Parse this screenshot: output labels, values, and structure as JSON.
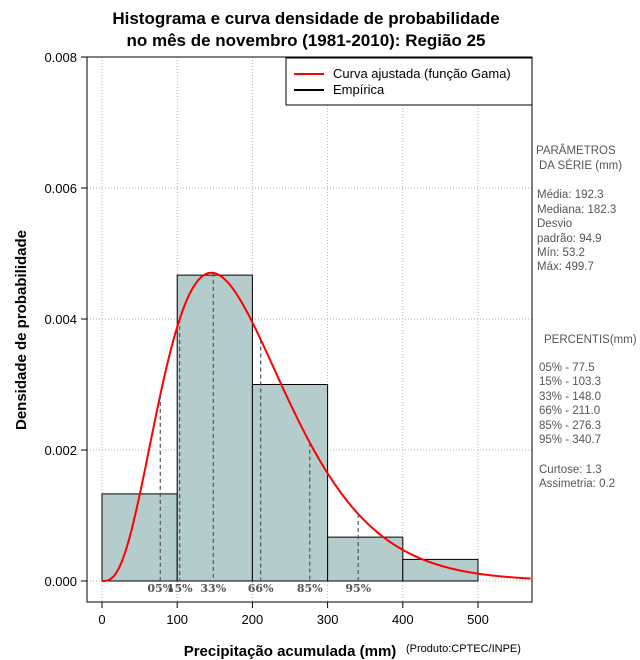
{
  "chart_data": {
    "type": "histogram",
    "title_line1": "Histograma e curva densidade de probabilidade",
    "title_line2": "no mês de novembro (1981-2010): Região 25",
    "xlabel": "Precipitação acumulada (mm)",
    "ylabel": "Densidade de probabilidade",
    "credit": "(Produto:CPTEC/INPE)",
    "xlim": [
      -20,
      570
    ],
    "ylim": [
      -0.0003,
      0.008
    ],
    "x_ticks": [
      "0",
      "100",
      "200",
      "300",
      "400",
      "500"
    ],
    "x_tick_values": [
      0,
      100,
      200,
      300,
      400,
      500
    ],
    "y_ticks": [
      "0.000",
      "0.002",
      "0.004",
      "0.006",
      "0.008"
    ],
    "y_tick_values": [
      0,
      0.002,
      0.004,
      0.006,
      0.008
    ],
    "bins": [
      {
        "start": 0,
        "end": 100,
        "density": 0.00133
      },
      {
        "start": 100,
        "end": 200,
        "density": 0.00467
      },
      {
        "start": 200,
        "end": 300,
        "density": 0.003
      },
      {
        "start": 300,
        "end": 400,
        "density": 0.00067
      },
      {
        "start": 400,
        "end": 500,
        "density": 0.00033
      }
    ],
    "bar_color": "#b5cccc",
    "curve_color": "#ff0000",
    "gamma_fit": {
      "mean": 192.3,
      "sd": 94.9
    },
    "legend": [
      {
        "label": "Curva ajustada (função Gama)",
        "color": "#ff0000"
      },
      {
        "label": "Empírica",
        "color": "#000000"
      }
    ],
    "percentile_markers": [
      {
        "label": "05%",
        "value": 77.5
      },
      {
        "label": "15%",
        "value": 103.3
      },
      {
        "label": "33%",
        "value": 148.0
      },
      {
        "label": "66%",
        "value": 211.0
      },
      {
        "label": "85%",
        "value": 276.3
      },
      {
        "label": "95%",
        "value": 340.7
      }
    ]
  },
  "side_panel": {
    "params_title_1": "PARÂMETROS",
    "params_title_2": "DA SÉRIE (mm)",
    "media": "Média:  192.3",
    "mediana": "Mediana:  182.3",
    "desvio_1": "Desvio",
    "desvio_2": "padrão:  94.9",
    "min": "Mín:  53.2",
    "max": "Máx:  499.7",
    "percentis_title": "PERCENTIS(mm)",
    "percentis": [
      "05% -  77.5",
      "15% -  103.3",
      "33% -  148.0",
      "66% -  211.0",
      "85% -  276.3",
      "95% -  340.7"
    ],
    "curtose": "Curtose:  1.3",
    "assimetria": "Assimetria:  0.2"
  }
}
